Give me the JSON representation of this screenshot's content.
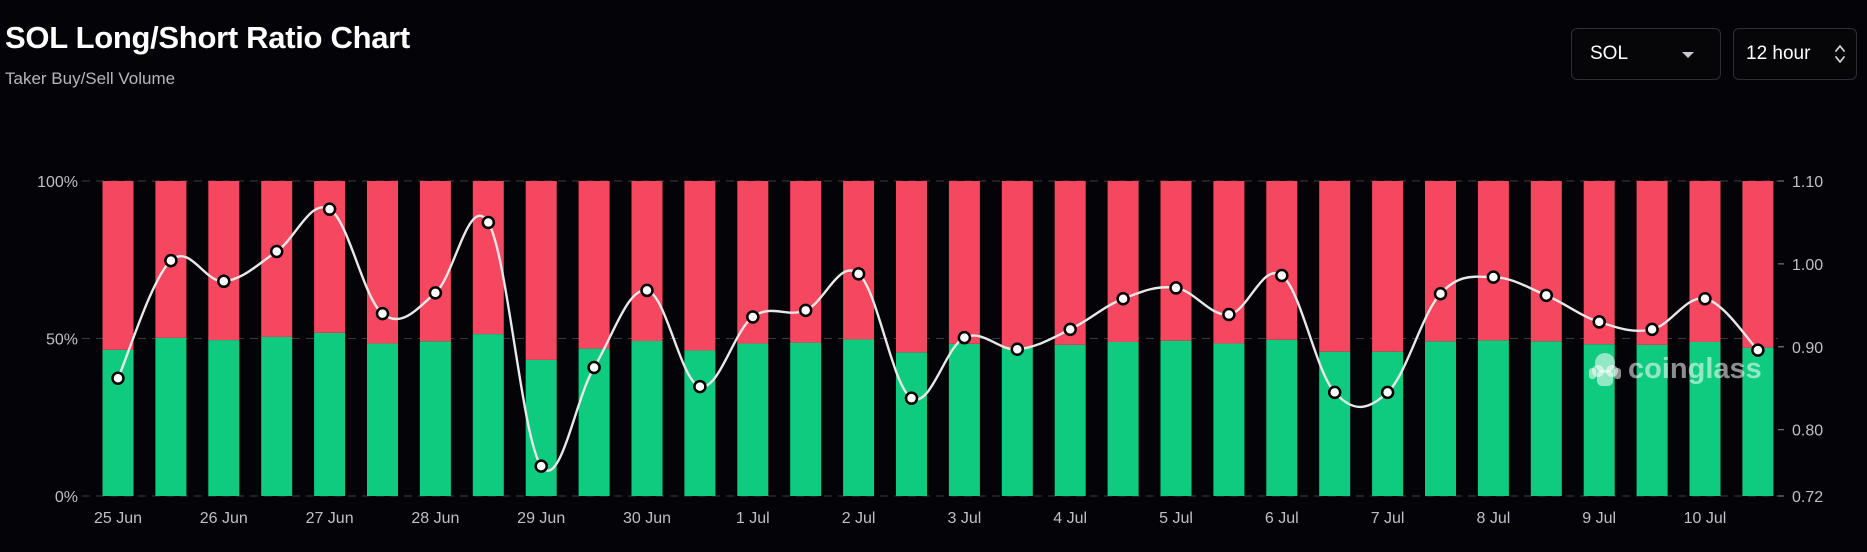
{
  "header": {
    "title": "SOL Long/Short Ratio Chart",
    "subtitle": "Taker Buy/Sell Volume"
  },
  "controls": {
    "symbol": {
      "value": "SOL",
      "icon": "caret-down-icon"
    },
    "interval": {
      "value": "12 hour",
      "icon": "up-down-chevron-icon"
    }
  },
  "watermark": {
    "text": "coinglass"
  },
  "colors": {
    "background": "#040408",
    "short": "#f5475f",
    "long": "#0fcb7f",
    "ratio_line": "#e8e8e8"
  },
  "chart_data": {
    "type": "bar",
    "stacked": true,
    "categories": [
      "25 Jun",
      "",
      "26 Jun",
      "",
      "27 Jun",
      "",
      "28 Jun",
      "",
      "29 Jun",
      "",
      "30 Jun",
      "",
      "1 Jul",
      "",
      "2 Jul",
      "",
      "3 Jul",
      "",
      "4 Jul",
      "",
      "5 Jul",
      "",
      "6 Jul",
      "",
      "7 Jul",
      "",
      "8 Jul",
      "",
      "9 Jul",
      "",
      "10 Jul",
      ""
    ],
    "x_tick_labels": [
      "25 Jun",
      "26 Jun",
      "27 Jun",
      "28 Jun",
      "29 Jun",
      "30 Jun",
      "1 Jul",
      "2 Jul",
      "3 Jul",
      "4 Jul",
      "5 Jul",
      "6 Jul",
      "7 Jul",
      "8 Jul",
      "9 Jul",
      "10 Jul"
    ],
    "series": [
      {
        "name": "",
        "axis": "left",
        "values": [
          46.4,
          50.2,
          49.5,
          50.5,
          51.8,
          48.4,
          49.1,
          51.4,
          43.2,
          46.8,
          49.2,
          46.2,
          48.4,
          48.7,
          49.7,
          45.6,
          48.3,
          47.3,
          48.0,
          48.9,
          49.3,
          48.4,
          49.6,
          45.8,
          45.8,
          49.1,
          49.4,
          49.1,
          48.2,
          48.0,
          48.9,
          47.1
        ]
      },
      {
        "name": "",
        "axis": "left",
        "values": [
          53.6,
          49.8,
          50.5,
          49.5,
          48.2,
          51.6,
          50.9,
          48.6,
          56.8,
          53.2,
          50.8,
          53.8,
          51.6,
          51.3,
          50.3,
          54.4,
          51.7,
          52.7,
          52.0,
          51.1,
          50.7,
          51.6,
          50.4,
          54.2,
          54.2,
          50.9,
          50.6,
          50.9,
          51.8,
          52.0,
          51.1,
          52.9
        ]
      },
      {
        "name": "",
        "axis": "right",
        "type": "line",
        "values": [
          0.862,
          1.004,
          0.979,
          1.015,
          1.066,
          0.94,
          0.965,
          1.05,
          0.756,
          0.875,
          0.968,
          0.852,
          0.936,
          0.944,
          0.988,
          0.838,
          0.911,
          0.897,
          0.921,
          0.958,
          0.971,
          0.939,
          0.986,
          0.845,
          0.845,
          0.964,
          0.984,
          0.962,
          0.93,
          0.921,
          0.958,
          0.896
        ]
      }
    ],
    "y_left": {
      "ticks": [
        "0%",
        "50%",
        "100%"
      ],
      "range": [
        0,
        100
      ]
    },
    "y_right": {
      "ticks": [
        "0.72",
        "0.80",
        "0.90",
        "1.00",
        "1.10"
      ],
      "values": [
        0.72,
        0.8,
        0.9,
        1.0,
        1.1
      ],
      "range": [
        0.72,
        1.1
      ]
    },
    "grid": true
  }
}
